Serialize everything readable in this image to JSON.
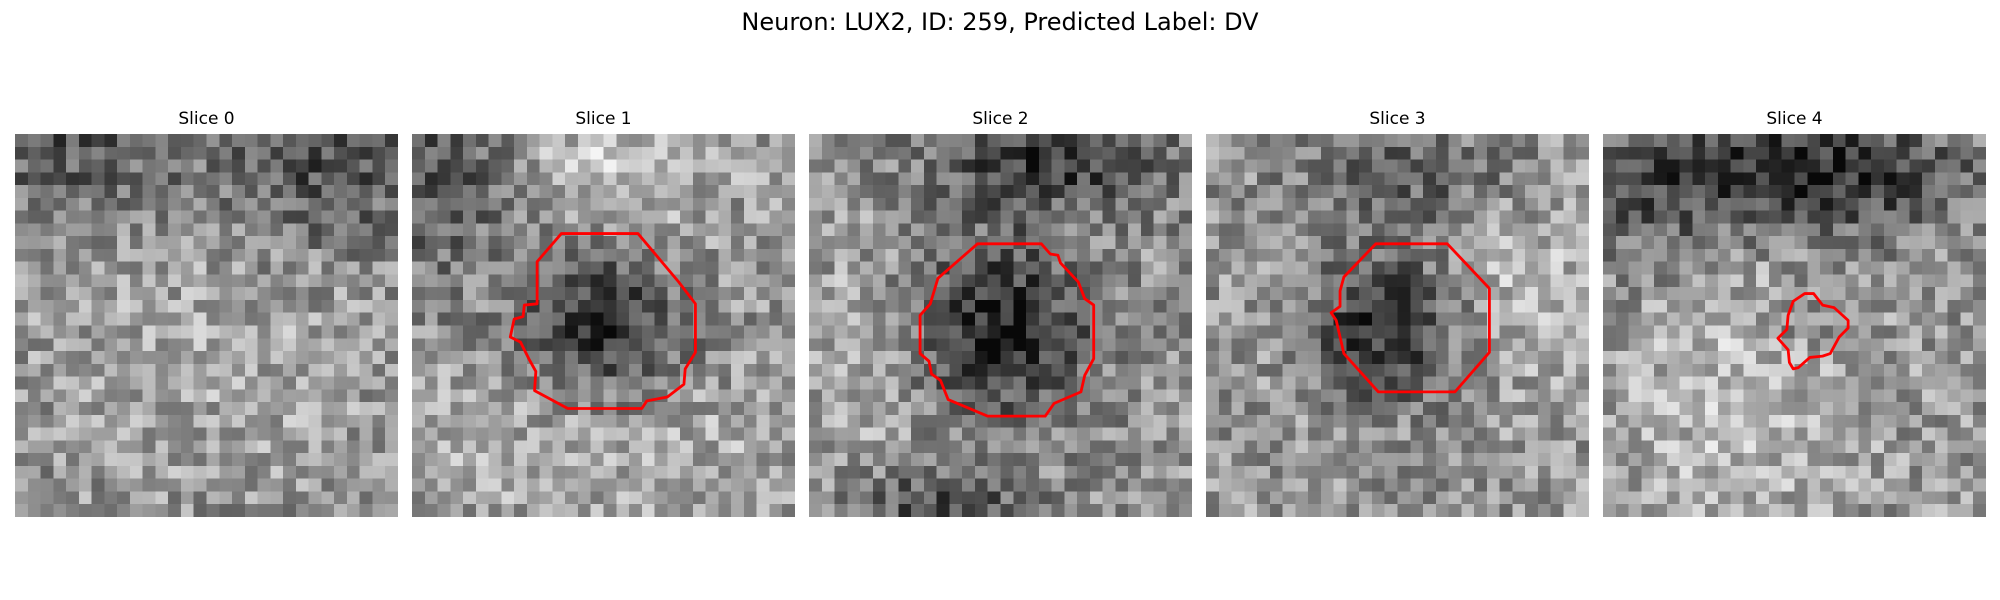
{
  "figure": {
    "title": "Neuron: LUX2, ID: 259, Predicted Label: DV"
  },
  "colors": {
    "background": "#ffffff",
    "contour": "#ff0000",
    "colormap": "grayscale"
  },
  "panels": [
    {
      "title": "Slice 0",
      "has_contour": false
    },
    {
      "title": "Slice 1",
      "has_contour": true
    },
    {
      "title": "Slice 2",
      "has_contour": true
    },
    {
      "title": "Slice 3",
      "has_contour": true
    },
    {
      "title": "Slice 4",
      "has_contour": true
    }
  ]
}
